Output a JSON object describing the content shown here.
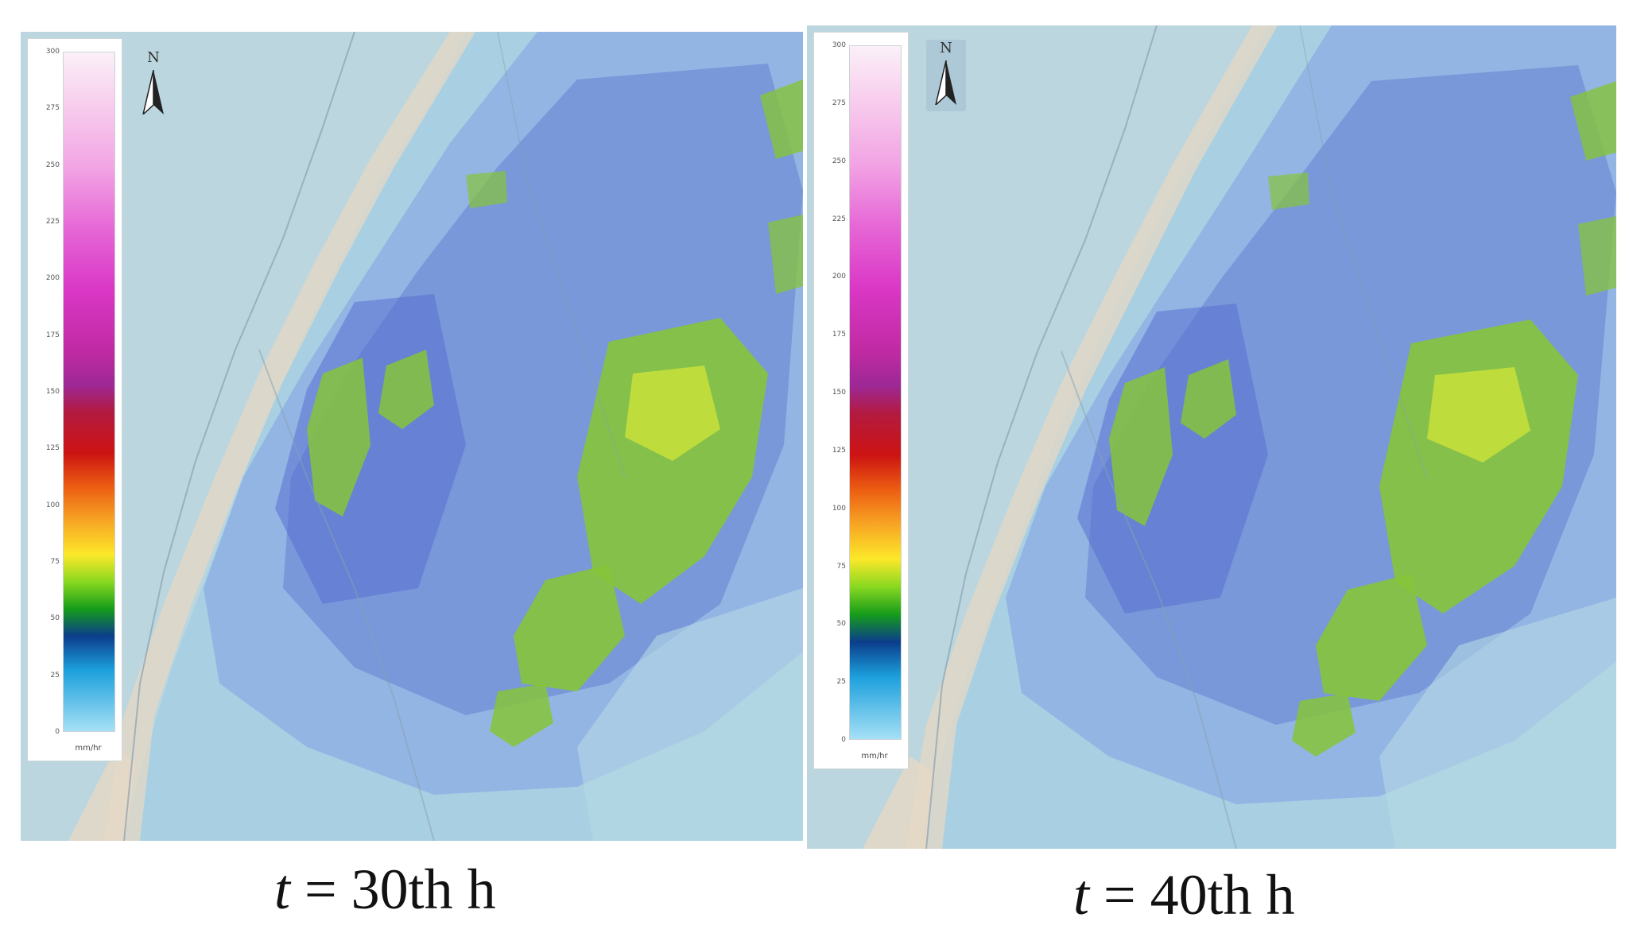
{
  "panels": [
    {
      "caption": {
        "var": "t",
        "rest": " = 30th h"
      },
      "legend": {
        "ticks": [
          "300",
          "275",
          "250",
          "225",
          "200",
          "175",
          "150",
          "125",
          "100",
          "75",
          "50",
          "25",
          "0"
        ],
        "unit": "mm/hr"
      },
      "north": "N"
    },
    {
      "caption": {
        "var": "t",
        "rest": " = 40th h"
      },
      "legend": {
        "ticks": [
          "300",
          "275",
          "250",
          "225",
          "200",
          "175",
          "150",
          "125",
          "100",
          "75",
          "50",
          "25",
          "0"
        ],
        "unit": "mm/hr"
      },
      "north": "N"
    }
  ],
  "colors": {
    "sea": "#bcd6df",
    "land_light": "#a9d0e2",
    "rain_blue": "#6f8fd6",
    "rain_deep": "#5a6fd2",
    "rain_green": "#86c43a",
    "rain_yellow": "#c8e03a",
    "coast_beige": "#e6d8c4"
  },
  "icons": [
    "north-arrow-icon"
  ]
}
